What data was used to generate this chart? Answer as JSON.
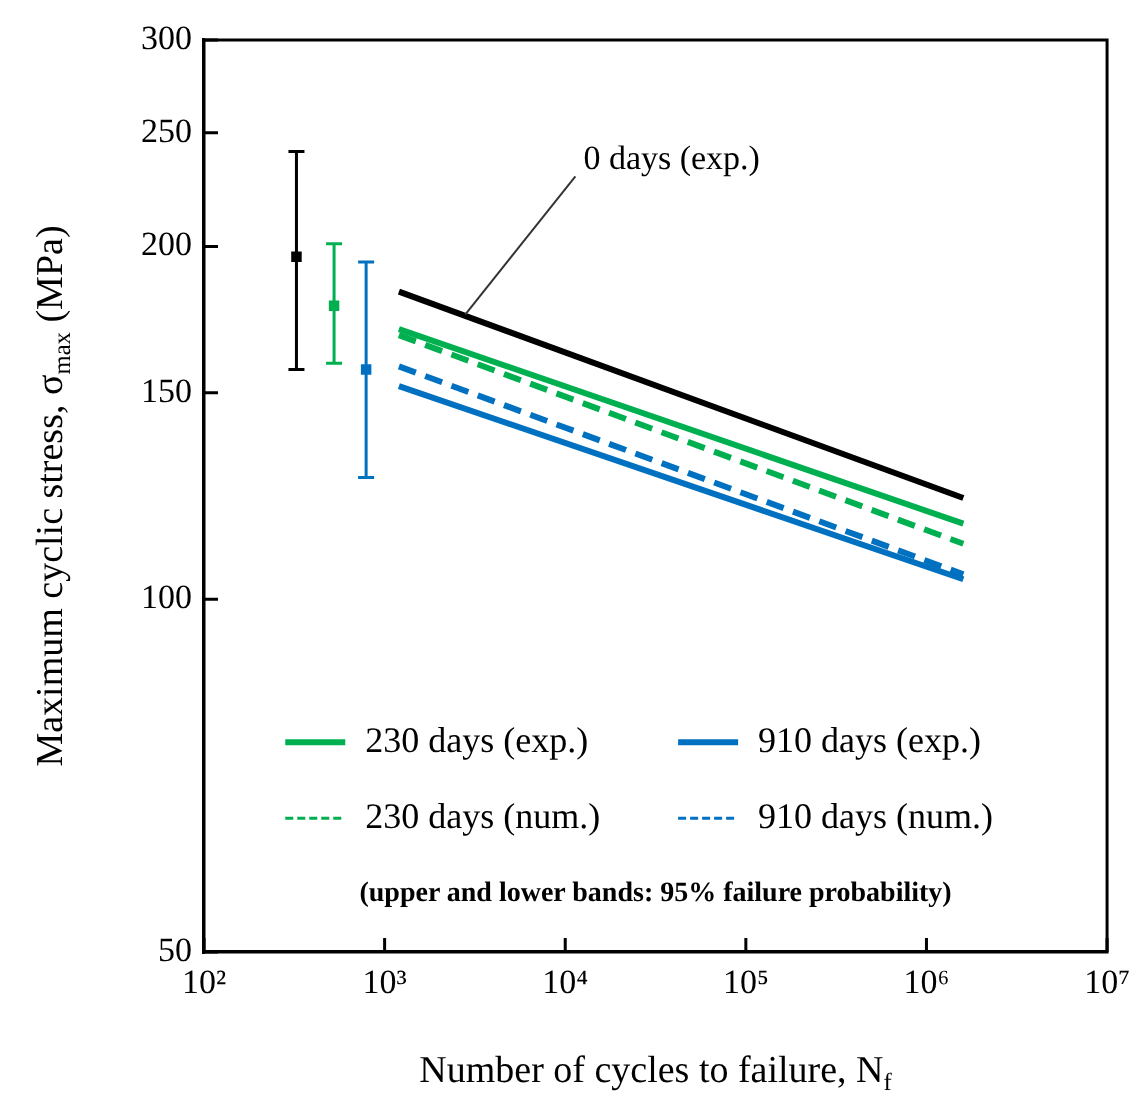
{
  "chart_data": {
    "type": "line",
    "xlabel": "Number of cycles to failure, N$_{f}$",
    "ylabel": "Maximum cyclic stress, σ$_{max}$ (MPa)",
    "log": "xy",
    "xlim": [
      100,
      10000000
    ],
    "xticks": [
      {
        "value": 100,
        "label": "10²"
      },
      {
        "value": 1000,
        "label": "10³"
      },
      {
        "value": 10000,
        "label": "10⁴"
      },
      {
        "value": 100000,
        "label": "10⁵"
      },
      {
        "value": 1000000,
        "label": "10⁶"
      },
      {
        "value": 10000000,
        "label": "10⁷"
      }
    ],
    "ylim": [
      50,
      300
    ],
    "yticks": [
      50,
      100,
      150,
      200,
      250,
      300
    ],
    "legend": "bottom",
    "series": [
      {
        "color": "#000000",
        "x": [
          1200,
          1600000
        ],
        "values": [
          183,
          122
        ]
      },
      {
        "name": "230 days (exp.)",
        "color": "#00b050",
        "x": [
          1200,
          1600000
        ],
        "values": [
          170,
          116
        ]
      },
      {
        "name": "230 days (num.)",
        "line_style": "dashed",
        "color": "#00b050",
        "x": [
          1200,
          1600000
        ],
        "values": [
          168,
          111.5
        ]
      },
      {
        "name": "910 days (exp.)",
        "color": "#0070c0",
        "x": [
          1200,
          1600000
        ],
        "values": [
          152,
          104
        ]
      },
      {
        "name": "910 days (num.)",
        "line_style": "dashed",
        "color": "#0070c0",
        "x": [
          1200,
          1600000
        ],
        "values": [
          158,
          105
        ]
      },
      {
        "type": "scatter",
        "marker": "square",
        "color": "#000000",
        "x": [
          325
        ],
        "values": [
          196
        ],
        "errors": [
          [
            157,
            241
          ]
        ]
      },
      {
        "type": "scatter",
        "marker": "square",
        "color": "#00b050",
        "x": [
          525
        ],
        "values": [
          178
        ],
        "errors": [
          [
            159,
            201
          ]
        ]
      },
      {
        "type": "scatter",
        "marker": "square",
        "color": "#0070c0",
        "x": [
          790
        ],
        "values": [
          157
        ],
        "errors": [
          [
            127,
            194
          ]
        ]
      }
    ],
    "annotations": [
      {
        "text": "0 days (exp.)",
        "x": 2800,
        "y": 175
      },
      "(upper and lower bands: 95% failure probability)"
    ]
  }
}
